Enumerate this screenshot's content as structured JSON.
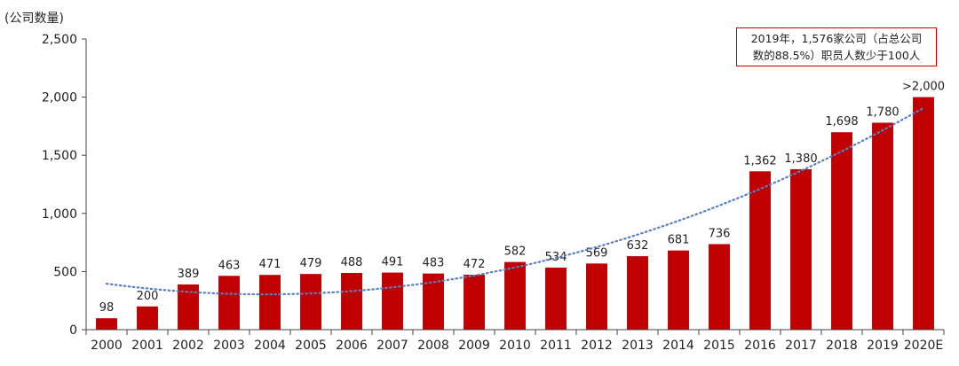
{
  "chart_data": {
    "type": "bar",
    "ylabel": "(公司数量)",
    "categories": [
      "2000",
      "2001",
      "2002",
      "2003",
      "2004",
      "2005",
      "2006",
      "2007",
      "2008",
      "2009",
      "2010",
      "2011",
      "2012",
      "2013",
      "2014",
      "2015",
      "2016",
      "2017",
      "2018",
      "2019",
      "2020E"
    ],
    "values": [
      98,
      200,
      389,
      463,
      471,
      479,
      488,
      491,
      483,
      472,
      582,
      534,
      569,
      632,
      681,
      736,
      1362,
      1380,
      1698,
      1780,
      2000
    ],
    "data_labels": [
      "98",
      "200",
      "389",
      "463",
      "471",
      "479",
      "488",
      "491",
      "483",
      "472",
      "582",
      "534",
      "569",
      "632",
      "681",
      "736",
      "1,362",
      "1,380",
      "1,698",
      "1,780",
      ">2,000"
    ],
    "ylim": [
      0,
      2500
    ],
    "yticks": [
      0,
      500,
      1000,
      1500,
      2000,
      2500
    ],
    "ytick_labels": [
      "0",
      "500",
      "1,000",
      "1,500",
      "2,000",
      "2,500"
    ],
    "trendline": {
      "style": "dotted",
      "color": "#5a7fbf",
      "type": "polynomial"
    },
    "grid": false,
    "bar_color": "#c00000",
    "annotation": {
      "line1": "2019年，1,576家公司（占总公司",
      "line2": "数的88.5%）职员人数少于100人",
      "border_color": "#c00000"
    }
  }
}
